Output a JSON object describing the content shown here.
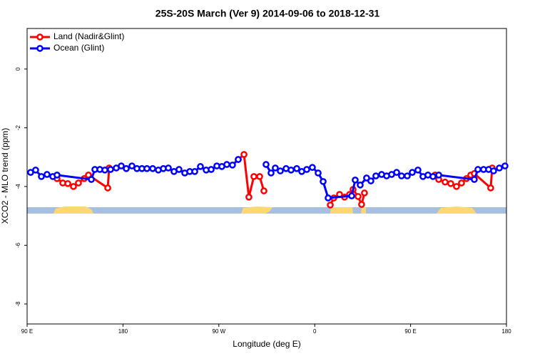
{
  "chart_data": {
    "type": "line",
    "title": "25S-20S March (Ver 9)   2014-09-06 to 2018-12-31",
    "x_label": "Longitude (deg E)",
    "y_label": "XCO2 - MLO trend (ppm)",
    "xlim": [
      90,
      540
    ],
    "ylim": [
      -8.68,
      1.38
    ],
    "xticks": [
      {
        "value": 90,
        "label": "90 E"
      },
      {
        "value": 180,
        "label": "180"
      },
      {
        "value": 270,
        "label": "90 W"
      },
      {
        "value": 360,
        "label": "0"
      },
      {
        "value": 450,
        "label": "90 E"
      },
      {
        "value": 540,
        "label": "180"
      }
    ],
    "yticks": [
      0,
      -2,
      -4,
      -6,
      -8
    ],
    "legend": "top-left",
    "series": [
      {
        "name": "Land (Nadir&Glint)",
        "color": "#ff0000",
        "x": [
          118.1,
          123.5,
          128.2,
          133.5,
          138.2,
          143.6,
          147.6,
          165.7,
          167.0,
          null,
          288.2,
          293.6,
          298.2,
          302.9,
          308.3,
          312.3,
          null,
          374.6,
          377.9,
          383.3,
          388.0,
          392.7,
          396.0,
          400.7,
          404.0,
          406.7,
          null,
          473.0,
          476.4,
          482.4,
          487.7,
          493.1,
          497.8,
          502.5,
          506.5,
          509.8,
          525.2,
          526.6
        ],
        "values": [
          -3.73,
          -3.88,
          -3.9,
          -4.0,
          -3.88,
          -3.73,
          -3.61,
          -4.05,
          -3.37,
          null,
          -3.08,
          -2.91,
          -4.36,
          -3.66,
          -3.66,
          -4.15,
          null,
          -4.63,
          -4.39,
          -4.27,
          -4.36,
          -4.27,
          -4.1,
          -4.34,
          -4.61,
          -4.22,
          null,
          -3.61,
          -3.76,
          -3.85,
          -3.9,
          -4.0,
          -3.88,
          -3.73,
          -3.61,
          -3.56,
          -4.05,
          -3.37
        ]
      },
      {
        "name": "Ocean (Glint)",
        "color": "#0000ff",
        "x": [
          93.3,
          98.0,
          103.4,
          108.7,
          114.1,
          118.1,
          150.3,
          153.6,
          158.3,
          163.0,
          168.3,
          173.7,
          178.4,
          183.1,
          188.4,
          193.1,
          197.8,
          202.5,
          207.9,
          213.2,
          217.9,
          222.6,
          227.9,
          232.6,
          238.0,
          242.7,
          247.4,
          252.7,
          258.1,
          262.8,
          268.1,
          272.8,
          277.5,
          282.8,
          288.2,
          null,
          314.3,
          319.0,
          323.0,
          327.7,
          333.1,
          337.8,
          343.1,
          347.8,
          352.5,
          357.8,
          363.2,
          367.9,
          372.6,
          394.7,
          398.0,
          402.7,
          408.7,
          412.7,
          417.4,
          422.8,
          427.5,
          432.2,
          436.9,
          441.5,
          446.9,
          451.6,
          456.9,
          461.6,
          466.3,
          471.0,
          476.4,
          509.8,
          513.2,
          518.5,
          523.2,
          527.9,
          533.3,
          538.6
        ],
        "values": [
          -3.52,
          -3.44,
          -3.66,
          -3.59,
          -3.66,
          -3.61,
          -3.76,
          -3.42,
          -3.42,
          -3.44,
          -3.42,
          -3.37,
          -3.3,
          -3.39,
          -3.3,
          -3.39,
          -3.39,
          -3.39,
          -3.39,
          -3.44,
          -3.39,
          -3.37,
          -3.49,
          -3.42,
          -3.54,
          -3.49,
          -3.49,
          -3.32,
          -3.44,
          -3.42,
          -3.3,
          -3.32,
          -3.25,
          -3.27,
          -3.08,
          null,
          -3.25,
          -3.54,
          -3.37,
          -3.47,
          -3.39,
          -3.44,
          -3.39,
          -3.49,
          -3.42,
          -3.35,
          -3.54,
          -3.83,
          -4.39,
          -4.32,
          -3.78,
          -3.95,
          -3.71,
          -3.81,
          -3.64,
          -3.59,
          -3.64,
          -3.59,
          -3.52,
          -3.64,
          -3.64,
          -3.52,
          -3.44,
          -3.66,
          -3.61,
          -3.66,
          -3.61,
          -3.76,
          -3.42,
          -3.42,
          -3.42,
          -3.47,
          -3.37,
          -3.3
        ]
      }
    ]
  }
}
